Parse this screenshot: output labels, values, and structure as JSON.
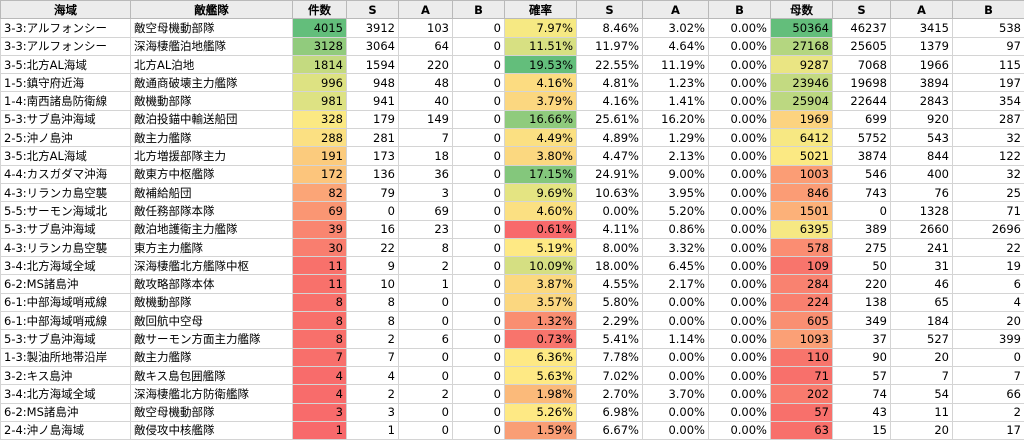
{
  "headers": [
    "海域",
    "敵艦隊",
    "件数",
    "S",
    "A",
    "B",
    "確率",
    "S",
    "A",
    "B",
    "母数",
    "S",
    "A",
    "B"
  ],
  "rows": [
    [
      "3-3:アルフォンシー",
      "敵空母機動部隊",
      "4015",
      "3912",
      "103",
      "0",
      "7.97%",
      "8.46%",
      "3.02%",
      "0.00%",
      "50364",
      "46237",
      "3415",
      "538"
    ],
    [
      "3-3:アルフォンシー",
      "深海棲艦泊地艦隊",
      "3128",
      "3064",
      "64",
      "0",
      "11.51%",
      "11.97%",
      "4.64%",
      "0.00%",
      "27168",
      "25605",
      "1379",
      "97"
    ],
    [
      "3-5:北方AL海域",
      "北方AL泊地",
      "1814",
      "1594",
      "220",
      "0",
      "19.53%",
      "22.55%",
      "11.19%",
      "0.00%",
      "9287",
      "7068",
      "1966",
      "115"
    ],
    [
      "1-5:鎮守府近海",
      "敵通商破壊主力艦隊",
      "996",
      "948",
      "48",
      "0",
      "4.16%",
      "4.81%",
      "1.23%",
      "0.00%",
      "23946",
      "19698",
      "3894",
      "197"
    ],
    [
      "1-4:南西諸島防衛線",
      "敵機動部隊",
      "981",
      "941",
      "40",
      "0",
      "3.79%",
      "4.16%",
      "1.41%",
      "0.00%",
      "25904",
      "22644",
      "2843",
      "354"
    ],
    [
      "5-3:サブ島沖海域",
      "敵泊投錨中輸送船団",
      "328",
      "179",
      "149",
      "0",
      "16.66%",
      "25.61%",
      "16.20%",
      "0.00%",
      "1969",
      "699",
      "920",
      "287"
    ],
    [
      "2-5:沖ノ島沖",
      "敵主力艦隊",
      "288",
      "281",
      "7",
      "0",
      "4.49%",
      "4.89%",
      "1.29%",
      "0.00%",
      "6412",
      "5752",
      "543",
      "32"
    ],
    [
      "3-5:北方AL海域",
      "北方増援部隊主力",
      "191",
      "173",
      "18",
      "0",
      "3.80%",
      "4.47%",
      "2.13%",
      "0.00%",
      "5021",
      "3874",
      "844",
      "122"
    ],
    [
      "4-4:カスガダマ沖海",
      "敵東方中枢艦隊",
      "172",
      "136",
      "36",
      "0",
      "17.15%",
      "24.91%",
      "9.00%",
      "0.00%",
      "1003",
      "546",
      "400",
      "32"
    ],
    [
      "4-3:リランカ島空襲",
      "敵補給船団",
      "82",
      "79",
      "3",
      "0",
      "9.69%",
      "10.63%",
      "3.95%",
      "0.00%",
      "846",
      "743",
      "76",
      "25"
    ],
    [
      "5-5:サーモン海域北",
      "敵任務部隊本隊",
      "69",
      "0",
      "69",
      "0",
      "4.60%",
      "0.00%",
      "5.20%",
      "0.00%",
      "1501",
      "0",
      "1328",
      "71"
    ],
    [
      "5-3:サブ島沖海域",
      "敵泊地護衛主力艦隊",
      "39",
      "16",
      "23",
      "0",
      "0.61%",
      "4.11%",
      "0.86%",
      "0.00%",
      "6395",
      "389",
      "2660",
      "2696"
    ],
    [
      "4-3:リランカ島空襲",
      "東方主力艦隊",
      "30",
      "22",
      "8",
      "0",
      "5.19%",
      "8.00%",
      "3.32%",
      "0.00%",
      "578",
      "275",
      "241",
      "22"
    ],
    [
      "3-4:北方海域全域",
      "深海棲艦北方艦隊中枢",
      "11",
      "9",
      "2",
      "0",
      "10.09%",
      "18.00%",
      "6.45%",
      "0.00%",
      "109",
      "50",
      "31",
      "19"
    ],
    [
      "6-2:MS諸島沖",
      "敵攻略部隊本体",
      "11",
      "10",
      "1",
      "0",
      "3.87%",
      "4.55%",
      "2.17%",
      "0.00%",
      "284",
      "220",
      "46",
      "6"
    ],
    [
      "6-1:中部海域哨戒線",
      "敵機動部隊",
      "8",
      "8",
      "0",
      "0",
      "3.57%",
      "5.80%",
      "0.00%",
      "0.00%",
      "224",
      "138",
      "65",
      "4"
    ],
    [
      "6-1:中部海域哨戒線",
      "敵回航中空母",
      "8",
      "8",
      "0",
      "0",
      "1.32%",
      "2.29%",
      "0.00%",
      "0.00%",
      "605",
      "349",
      "184",
      "20"
    ],
    [
      "5-3:サブ島沖海域",
      "敵サーモン方面主力艦隊",
      "8",
      "2",
      "6",
      "0",
      "0.73%",
      "5.41%",
      "1.14%",
      "0.00%",
      "1093",
      "37",
      "527",
      "399"
    ],
    [
      "1-3:製油所地帯沿岸",
      "敵主力艦隊",
      "7",
      "7",
      "0",
      "0",
      "6.36%",
      "7.78%",
      "0.00%",
      "0.00%",
      "110",
      "90",
      "20",
      "0"
    ],
    [
      "3-2:キス島沖",
      "敵キス島包囲艦隊",
      "4",
      "4",
      "0",
      "0",
      "5.63%",
      "7.02%",
      "0.00%",
      "0.00%",
      "71",
      "57",
      "7",
      "7"
    ],
    [
      "3-4:北方海域全域",
      "深海棲艦北方防衛艦隊",
      "4",
      "2",
      "2",
      "0",
      "1.98%",
      "2.70%",
      "3.70%",
      "0.00%",
      "202",
      "74",
      "54",
      "66"
    ],
    [
      "6-2:MS諸島沖",
      "敵空母機動部隊",
      "3",
      "3",
      "0",
      "0",
      "5.26%",
      "6.98%",
      "0.00%",
      "0.00%",
      "57",
      "43",
      "11",
      "2"
    ],
    [
      "2-4:沖ノ島海域",
      "敵侵攻中核艦隊",
      "1",
      "1",
      "0",
      "0",
      "1.59%",
      "6.67%",
      "0.00%",
      "0.00%",
      "63",
      "15",
      "20",
      "17"
    ]
  ],
  "colors": {
    "count": [
      "#63be7b",
      "#91cb7d",
      "#c4da80",
      "#dde282",
      "#dde283",
      "#fbe983",
      "#fbe082",
      "#fbcb7d",
      "#fcc57c",
      "#fba577",
      "#fa9673",
      "#f98570",
      "#f97e6f",
      "#f8716b",
      "#f8716b",
      "#f8706b",
      "#f8706b",
      "#f8706b",
      "#f86f6b",
      "#f86c6b",
      "#f86c6b",
      "#f86b6b",
      "#f8696b"
    ],
    "rate": [
      "#f6e983",
      "#d7e082",
      "#63be7b",
      "#fcdc81",
      "#fbd780",
      "#8fcb7d",
      "#fbe082",
      "#fbd880",
      "#84c77c",
      "#e4e482",
      "#fbe082",
      "#f8696b",
      "#fee984",
      "#d5df82",
      "#fbd980",
      "#fbd780",
      "#f98e71",
      "#f8746c",
      "#fee984",
      "#fee984",
      "#fbba7a",
      "#fee984",
      "#f99e75"
    ],
    "total": [
      "#63be7b",
      "#b4d680",
      "#eae583",
      "#c3da81",
      "#bcd881",
      "#fcd37f",
      "#f7e883",
      "#fbe983",
      "#fb9d75",
      "#fb9c75",
      "#fcb179",
      "#f6e883",
      "#fb8d72",
      "#f8756c",
      "#f98270",
      "#f9806f",
      "#f98f72",
      "#fba076",
      "#f8756c",
      "#f8706b",
      "#f97b6e",
      "#f8706b",
      "#f8706b"
    ]
  }
}
